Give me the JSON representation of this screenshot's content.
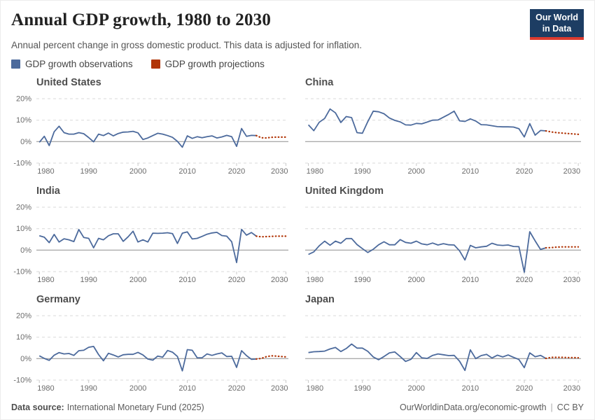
{
  "header": {
    "title": "Annual GDP growth, 1980 to 2030",
    "subtitle": "Annual percent change in gross domestic product. This data is adjusted for inflation.",
    "logo": {
      "line1": "Our World",
      "line2": "in Data"
    }
  },
  "legend": [
    {
      "label": "GDP growth observations",
      "color": "#4c6a9c"
    },
    {
      "label": "GDP growth projections",
      "color": "#b13507"
    }
  ],
  "footer": {
    "source_label": "Data source:",
    "source_text": "International Monetary Fund (2025)",
    "url": "OurWorldinData.org/economic-growth",
    "separator": "|",
    "license": "CC BY"
  },
  "colors": {
    "observation_line": "#4c6a9c",
    "projection_line": "#b13507",
    "grid_dashed": "#d9d9d9",
    "zero_line": "#8f8f8f",
    "logo_bg": "#1d3d63",
    "logo_stripe": "#dc3b2f"
  },
  "chart_data": {
    "type": "line",
    "layout": "2x3 small multiples",
    "xdomain": [
      1979.4,
      2030.5
    ],
    "xticks": [
      1980,
      1990,
      2000,
      2010,
      2020,
      2030
    ],
    "ylim": [
      -10,
      20
    ],
    "yticks": [
      {
        "v": -10,
        "l": "-10%"
      },
      {
        "v": 0,
        "l": "0%"
      },
      {
        "v": 10,
        "l": "10%"
      },
      {
        "v": 20,
        "l": "20%"
      }
    ],
    "panels": [
      {
        "title": "United States",
        "show_y_labels": true,
        "series": [
          {
            "name": "GDP growth observations",
            "color": "#4c6a9c",
            "style": "solid",
            "start_year": 1980,
            "values": [
              -0.3,
              2.5,
              -1.8,
              4.6,
              7.2,
              4.2,
              3.5,
              3.5,
              4.2,
              3.7,
              1.9,
              -0.1,
              3.5,
              2.8,
              4.0,
              2.7,
              3.8,
              4.4,
              4.5,
              4.8,
              4.1,
              1.0,
              1.7,
              2.8,
              3.9,
              3.5,
              2.8,
              2.0,
              0.1,
              -2.6,
              2.7,
              1.5,
              2.3,
              1.8,
              2.3,
              2.7,
              1.7,
              2.2,
              2.9,
              2.3,
              -2.2,
              6.1,
              2.5,
              2.9,
              2.8
            ]
          },
          {
            "name": "GDP growth projections",
            "color": "#b13507",
            "style": "dotted",
            "start_year": 2024,
            "values": [
              2.8,
              1.8,
              1.7,
              2.0,
              2.1,
              2.1,
              2.1
            ]
          }
        ]
      },
      {
        "title": "China",
        "show_y_labels": false,
        "series": [
          {
            "name": "GDP growth observations",
            "color": "#4c6a9c",
            "style": "solid",
            "start_year": 1980,
            "values": [
              7.8,
              5.1,
              9.0,
              10.8,
              15.2,
              13.4,
              8.9,
              11.7,
              11.2,
              4.2,
              3.9,
              9.3,
              14.2,
              13.9,
              13.0,
              11.0,
              9.9,
              9.2,
              7.8,
              7.7,
              8.5,
              8.3,
              9.1,
              10.0,
              10.1,
              11.4,
              12.7,
              14.2,
              9.7,
              9.4,
              10.6,
              9.6,
              7.9,
              7.8,
              7.4,
              7.0,
              6.9,
              6.9,
              6.8,
              6.0,
              2.2,
              8.4,
              3.0,
              5.2,
              5.0
            ]
          },
          {
            "name": "GDP growth projections",
            "color": "#b13507",
            "style": "dotted",
            "start_year": 2024,
            "values": [
              5.0,
              4.5,
              4.2,
              4.0,
              3.8,
              3.6,
              3.4
            ]
          }
        ]
      },
      {
        "title": "India",
        "show_y_labels": true,
        "series": [
          {
            "name": "GDP growth observations",
            "color": "#4c6a9c",
            "style": "solid",
            "start_year": 1980,
            "values": [
              6.7,
              6.0,
              3.5,
              7.3,
              3.8,
              5.3,
              4.8,
              4.0,
              9.6,
              5.9,
              5.5,
              1.1,
              5.5,
              4.8,
              6.7,
              7.6,
              7.6,
              4.1,
              6.2,
              8.8,
              3.8,
              4.8,
              3.8,
              7.9,
              7.8,
              7.9,
              8.1,
              7.7,
              3.1,
              7.9,
              8.5,
              5.2,
              5.5,
              6.4,
              7.4,
              8.0,
              8.3,
              6.8,
              6.5,
              3.9,
              -5.8,
              9.7,
              7.0,
              8.2,
              6.5
            ]
          },
          {
            "name": "GDP growth projections",
            "color": "#b13507",
            "style": "dotted",
            "start_year": 2024,
            "values": [
              6.5,
              6.2,
              6.3,
              6.4,
              6.5,
              6.5,
              6.5
            ]
          }
        ]
      },
      {
        "title": "United Kingdom",
        "show_y_labels": false,
        "series": [
          {
            "name": "GDP growth observations",
            "color": "#4c6a9c",
            "style": "solid",
            "start_year": 1980,
            "values": [
              -2.0,
              -0.8,
              2.0,
              4.2,
              2.3,
              4.2,
              3.2,
              5.4,
              5.4,
              2.6,
              0.7,
              -1.1,
              0.4,
              2.5,
              3.9,
              2.5,
              2.5,
              4.9,
              3.6,
              3.2,
              4.2,
              2.9,
              2.5,
              3.3,
              2.4,
              3.0,
              2.5,
              2.4,
              -0.3,
              -4.6,
              2.2,
              1.1,
              1.5,
              1.8,
              3.2,
              2.4,
              2.2,
              2.4,
              1.7,
              1.6,
              -10.3,
              8.6,
              4.3,
              0.3,
              1.1
            ]
          },
          {
            "name": "GDP growth projections",
            "color": "#b13507",
            "style": "dotted",
            "start_year": 2024,
            "values": [
              1.1,
              1.2,
              1.4,
              1.5,
              1.5,
              1.5,
              1.5
            ]
          }
        ]
      },
      {
        "title": "Germany",
        "show_y_labels": true,
        "series": [
          {
            "name": "GDP growth observations",
            "color": "#4c6a9c",
            "style": "solid",
            "start_year": 1980,
            "values": [
              1.3,
              0.1,
              -0.8,
              1.6,
              2.8,
              2.2,
              2.4,
              1.5,
              3.7,
              3.9,
              5.3,
              5.7,
              1.9,
              -1.0,
              2.5,
              1.7,
              0.8,
              1.8,
              2.0,
              2.0,
              2.9,
              1.7,
              -0.2,
              -0.7,
              1.2,
              0.7,
              3.8,
              3.0,
              1.0,
              -5.7,
              4.2,
              3.9,
              0.4,
              0.4,
              2.2,
              1.5,
              2.2,
              2.7,
              1.0,
              1.1,
              -4.1,
              3.7,
              1.4,
              -0.3,
              -0.2
            ]
          },
          {
            "name": "GDP growth projections",
            "color": "#b13507",
            "style": "dotted",
            "start_year": 2024,
            "values": [
              -0.2,
              0.1,
              0.9,
              1.3,
              1.2,
              1.0,
              0.8
            ]
          }
        ]
      },
      {
        "title": "Japan",
        "show_y_labels": false,
        "series": [
          {
            "name": "GDP growth observations",
            "color": "#4c6a9c",
            "style": "solid",
            "start_year": 1980,
            "values": [
              2.8,
              3.2,
              3.3,
              3.5,
              4.5,
              5.2,
              3.3,
              4.7,
              6.8,
              4.9,
              4.9,
              3.4,
              0.8,
              -0.5,
              1.0,
              2.7,
              3.1,
              1.0,
              -1.3,
              -0.3,
              2.8,
              0.4,
              0.1,
              1.5,
              2.2,
              1.8,
              1.4,
              1.5,
              -1.2,
              -5.5,
              4.1,
              0.0,
              1.4,
              2.0,
              0.3,
              1.6,
              0.8,
              1.7,
              0.6,
              -0.4,
              -4.2,
              2.7,
              0.9,
              1.5,
              0.1
            ]
          },
          {
            "name": "GDP growth projections",
            "color": "#b13507",
            "style": "dotted",
            "start_year": 2024,
            "values": [
              0.1,
              0.6,
              0.6,
              0.6,
              0.5,
              0.5,
              0.4
            ]
          }
        ]
      }
    ]
  }
}
